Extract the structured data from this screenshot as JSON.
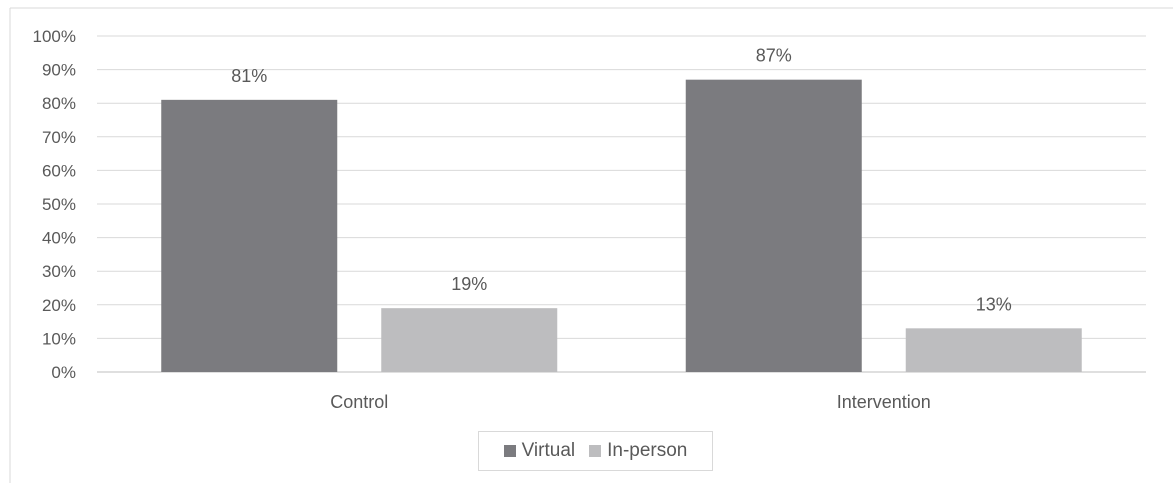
{
  "chart_data": {
    "type": "bar",
    "categories": [
      "Control",
      "Intervention"
    ],
    "series": [
      {
        "name": "Virtual",
        "values": [
          81,
          87
        ],
        "labels": [
          "81%",
          "87%"
        ],
        "color": "#7b7b7f"
      },
      {
        "name": "In-person",
        "values": [
          19,
          13
        ],
        "labels": [
          "19%",
          "13%"
        ],
        "color": "#bdbdbf"
      }
    ],
    "ylim": [
      0,
      100
    ],
    "yticks": [
      0,
      10,
      20,
      30,
      40,
      50,
      60,
      70,
      80,
      90,
      100
    ],
    "ytick_labels": [
      "0%",
      "10%",
      "20%",
      "30%",
      "40%",
      "50%",
      "60%",
      "70%",
      "80%",
      "90%",
      "100%"
    ],
    "grid": true,
    "legend_position": "bottom",
    "gridline_color": "#d9d9d9",
    "axis_color": "#bfbfbf"
  },
  "legend": {
    "items": [
      {
        "label": "Virtual",
        "color": "#7b7b7f"
      },
      {
        "label": "In-person",
        "color": "#bdbdbf"
      }
    ]
  }
}
